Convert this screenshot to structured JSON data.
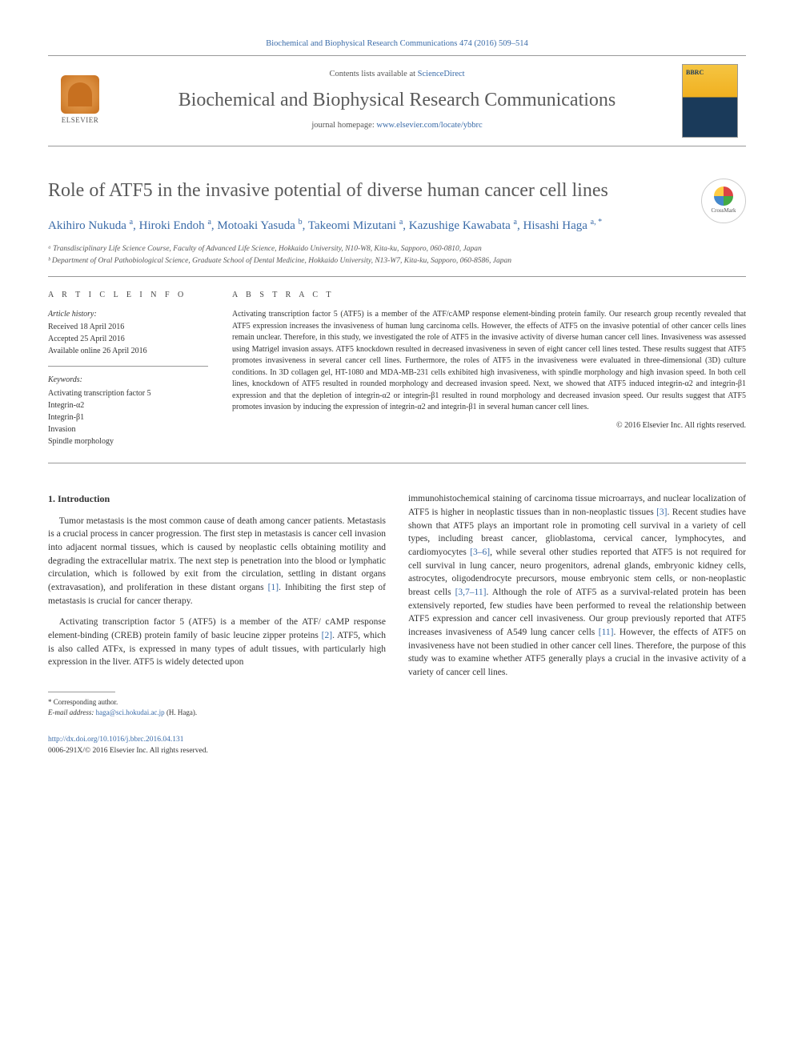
{
  "header": {
    "citation": "Biochemical and Biophysical Research Communications 474 (2016) 509–514",
    "contents_prefix": "Contents lists available at ",
    "contents_link": "ScienceDirect",
    "journal_name": "Biochemical and Biophysical Research Communications",
    "homepage_prefix": "journal homepage: ",
    "homepage_url": "www.elsevier.com/locate/ybbrc",
    "publisher": "ELSEVIER",
    "crossmark": "CrossMark"
  },
  "article": {
    "title": "Role of ATF5 in the invasive potential of diverse human cancer cell lines",
    "authors_html": "Akihiro Nukuda <sup>a</sup>, Hiroki Endoh <sup>a</sup>, Motoaki Yasuda <sup>b</sup>, Takeomi Mizutani <sup>a</sup>, Kazushige Kawabata <sup>a</sup>, Hisashi Haga <sup>a, *</sup>",
    "affiliations": [
      "ᵃ Transdisciplinary Life Science Course, Faculty of Advanced Life Science, Hokkaido University, N10-W8, Kita-ku, Sapporo, 060-0810, Japan",
      "ᵇ Department of Oral Pathobiological Science, Graduate School of Dental Medicine, Hokkaido University, N13-W7, Kita-ku, Sapporo, 060-8586, Japan"
    ]
  },
  "info": {
    "heading": "A R T I C L E   I N F O",
    "history_label": "Article history:",
    "received": "Received 18 April 2016",
    "accepted": "Accepted 25 April 2016",
    "online": "Available online 26 April 2016",
    "keywords_label": "Keywords:",
    "keywords": [
      "Activating transcription factor 5",
      "Integrin-α2",
      "Integrin-β1",
      "Invasion",
      "Spindle morphology"
    ]
  },
  "abstract": {
    "heading": "A B S T R A C T",
    "text": "Activating transcription factor 5 (ATF5) is a member of the ATF/cAMP response element-binding protein family. Our research group recently revealed that ATF5 expression increases the invasiveness of human lung carcinoma cells. However, the effects of ATF5 on the invasive potential of other cancer cells lines remain unclear. Therefore, in this study, we investigated the role of ATF5 in the invasive activity of diverse human cancer cell lines. Invasiveness was assessed using Matrigel invasion assays. ATF5 knockdown resulted in decreased invasiveness in seven of eight cancer cell lines tested. These results suggest that ATF5 promotes invasiveness in several cancer cell lines. Furthermore, the roles of ATF5 in the invasiveness were evaluated in three-dimensional (3D) culture conditions. In 3D collagen gel, HT-1080 and MDA-MB-231 cells exhibited high invasiveness, with spindle morphology and high invasion speed. In both cell lines, knockdown of ATF5 resulted in rounded morphology and decreased invasion speed. Next, we showed that ATF5 induced integrin-α2 and integrin-β1 expression and that the depletion of integrin-α2 or integrin-β1 resulted in round morphology and decreased invasion speed. Our results suggest that ATF5 promotes invasion by inducing the expression of integrin-α2 and integrin-β1 in several human cancer cell lines.",
    "copyright": "© 2016 Elsevier Inc. All rights reserved."
  },
  "body": {
    "section1_heading": "1.  Introduction",
    "col1_p1": "Tumor metastasis is the most common cause of death among cancer patients. Metastasis is a crucial process in cancer progression. The first step in metastasis is cancer cell invasion into adjacent normal tissues, which is caused by neoplastic cells obtaining motility and degrading the extracellular matrix. The next step is penetration into the blood or lymphatic circulation, which is followed by exit from the circulation, settling in distant organs (extravasation), and proliferation in these distant organs ",
    "col1_p1_cite": "[1]",
    "col1_p1_end": ". Inhibiting the first step of metastasis is crucial for cancer therapy.",
    "col1_p2": "Activating transcription factor 5 (ATF5) is a member of the ATF/ cAMP response element-binding (CREB) protein family of basic leucine zipper proteins ",
    "col1_p2_cite": "[2]",
    "col1_p2_end": ". ATF5, which is also called ATFx, is expressed in many types of adult tissues, with particularly high expression in the liver. ATF5 is widely detected upon",
    "col2_p1": "immunohistochemical staining of carcinoma tissue microarrays, and nuclear localization of ATF5 is higher in neoplastic tissues than in non-neoplastic tissues ",
    "col2_p1_cite1": "[3]",
    "col2_p1_mid": ". Recent studies have shown that ATF5 plays an important role in promoting cell survival in a variety of cell types, including breast cancer, glioblastoma, cervical cancer, lymphocytes, and cardiomyocytes ",
    "col2_p1_cite2": "[3–6]",
    "col2_p1_mid2": ", while several other studies reported that ATF5 is not required for cell survival in lung cancer, neuro progenitors, adrenal glands, embryonic kidney cells, astrocytes, oligodendrocyte precursors, mouse embryonic stem cells, or non-neoplastic breast cells ",
    "col2_p1_cite3": "[3,7–11]",
    "col2_p1_mid3": ". Although the role of ATF5 as a survival-related protein has been extensively reported, few studies have been performed to reveal the relationship between ATF5 expression and cancer cell invasiveness. Our group previously reported that ATF5 increases invasiveness of A549 lung cancer cells ",
    "col2_p1_cite4": "[11]",
    "col2_p1_end": ". However, the effects of ATF5 on invasiveness have not been studied in other cancer cell lines. Therefore, the purpose of this study was to examine whether ATF5 generally plays a crucial in the invasive activity of a variety of cancer cell lines."
  },
  "footnote": {
    "corr": "* Corresponding author.",
    "email_label": "E-mail address: ",
    "email": "haga@sci.hokudai.ac.jp",
    "email_suffix": " (H. Haga)."
  },
  "footer": {
    "doi": "http://dx.doi.org/10.1016/j.bbrc.2016.04.131",
    "issn": "0006-291X/© 2016 Elsevier Inc. All rights reserved."
  },
  "colors": {
    "link": "#3a6ba8",
    "text": "#333333",
    "heading": "#5a5a5a",
    "rule": "#999999"
  }
}
